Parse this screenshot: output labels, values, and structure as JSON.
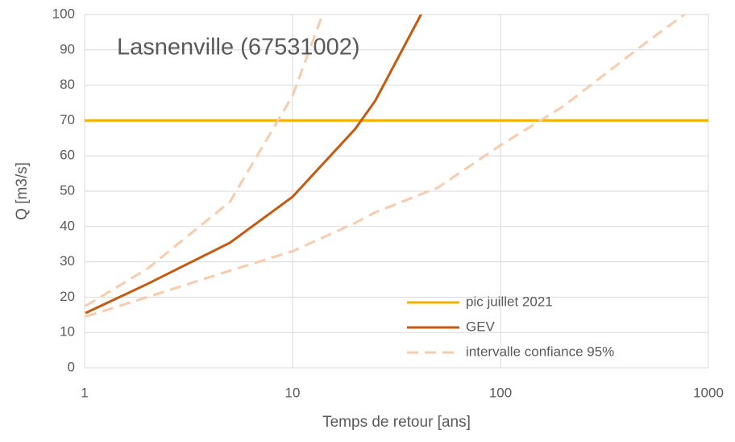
{
  "chart_data": {
    "type": "line",
    "title": "Lasnenville (67531002)",
    "xlabel": "Temps de retour [ans]",
    "ylabel": "Q [m3/s]",
    "xscale": "log",
    "xlim": [
      1,
      1000
    ],
    "xticks": [
      1,
      10,
      100,
      1000
    ],
    "ylim": [
      0,
      100
    ],
    "yticks": [
      0,
      10,
      20,
      30,
      40,
      50,
      60,
      70,
      80,
      90,
      100
    ],
    "grid": true,
    "legend": "lower right",
    "series": [
      {
        "name": "pic juillet 2021",
        "color": "#f5b000",
        "dash": "solid",
        "x": [
          1,
          1000
        ],
        "values": [
          70,
          70
        ]
      },
      {
        "name": "GEV",
        "color": "#c55a11",
        "dash": "solid",
        "x": [
          1.01,
          2,
          5,
          10,
          20,
          25,
          50
        ],
        "values": [
          15.5,
          23.7,
          35.4,
          48.4,
          67.6,
          75.6,
          109
        ]
      },
      {
        "name": "intervalle confiance 95%",
        "color": "#f8cbad",
        "dash": "dashed",
        "x": [
          1.01,
          2,
          5,
          10,
          20,
          25,
          50,
          100,
          200,
          500,
          1000
        ],
        "values": [
          14.5,
          20,
          27.5,
          33,
          41,
          44,
          51,
          63,
          74,
          92,
          105
        ]
      },
      {
        "name": null,
        "color": "#f8cbad",
        "dash": "dashed",
        "x": [
          1.01,
          2,
          5,
          10,
          20
        ],
        "values": [
          17.5,
          28,
          47,
          77,
          125
        ]
      }
    ]
  }
}
